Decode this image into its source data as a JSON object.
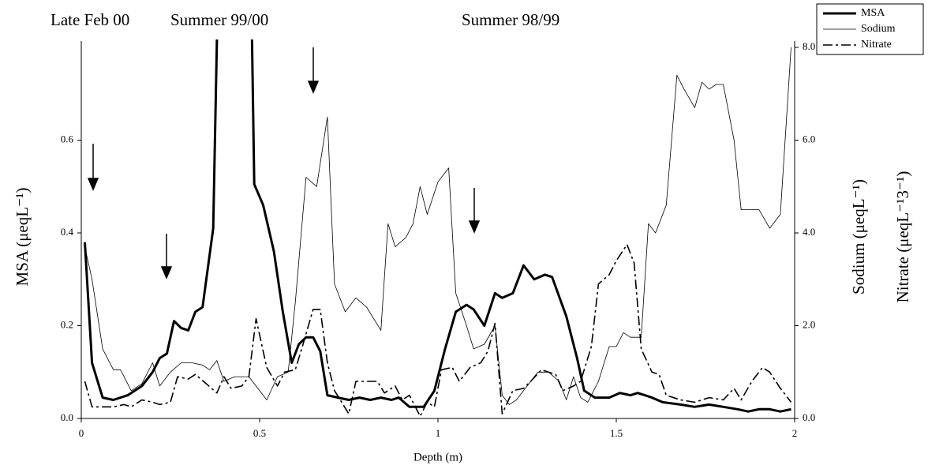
{
  "chart_data": {
    "type": "line",
    "annotations": [
      "Late Feb 00",
      "Summer 99/00",
      "Summer 98/99"
    ],
    "xlabel": "Depth (m)",
    "ylabel": "MSA (μeqL⁻¹)",
    "y2labels": [
      "Sodium (μeqL⁻¹)",
      "Nitrate (μeqL⁻¹3⁻¹)"
    ],
    "xlim": [
      0,
      2
    ],
    "xticks": [
      0,
      0.5,
      1,
      1.5,
      2
    ],
    "ylim": [
      0,
      0.8
    ],
    "yticks": [
      {
        "value": 0,
        "label": "0.0"
      },
      0.2,
      0.4,
      0.6
    ],
    "y2lim": [
      0,
      8
    ],
    "y2ticks": [
      {
        "value": 0,
        "label": "0.0"
      },
      {
        "value": 2,
        "label": "2.0"
      },
      {
        "value": 4,
        "label": "4.0"
      },
      {
        "value": 6,
        "label": "6.0"
      },
      {
        "value": 8,
        "label": "8.0"
      }
    ],
    "legend": "top-right",
    "series": [
      {
        "name": "MSA",
        "color": "#000000",
        "linewidth": 3,
        "style": "solid",
        "x": [
          0.01,
          0.03,
          0.06,
          0.09,
          0.13,
          0.17,
          0.2,
          0.22,
          0.24,
          0.26,
          0.28,
          0.3,
          0.32,
          0.34,
          0.37,
          0.385,
          0.475,
          0.485,
          0.51,
          0.54,
          0.565,
          0.59,
          0.61,
          0.63,
          0.65,
          0.67,
          0.69,
          0.72,
          0.75,
          0.78,
          0.81,
          0.84,
          0.87,
          0.89,
          0.92,
          0.96,
          0.99,
          1.02,
          1.05,
          1.08,
          1.1,
          1.13,
          1.16,
          1.18,
          1.21,
          1.24,
          1.27,
          1.3,
          1.32,
          1.36,
          1.39,
          1.41,
          1.44,
          1.48,
          1.51,
          1.54,
          1.56,
          1.58,
          1.6,
          1.63,
          1.68,
          1.72,
          1.76,
          1.8,
          1.84,
          1.87,
          1.9,
          1.93,
          1.96,
          1.99
        ],
        "values": [
          0.38,
          0.12,
          0.045,
          0.04,
          0.05,
          0.07,
          0.1,
          0.13,
          0.14,
          0.21,
          0.195,
          0.19,
          0.23,
          0.24,
          0.41,
          1.0,
          1.0,
          0.505,
          0.46,
          0.36,
          0.23,
          0.12,
          0.16,
          0.175,
          0.175,
          0.145,
          0.05,
          0.045,
          0.04,
          0.045,
          0.04,
          0.045,
          0.04,
          0.045,
          0.025,
          0.025,
          0.06,
          0.15,
          0.23,
          0.245,
          0.235,
          0.2,
          0.27,
          0.26,
          0.27,
          0.33,
          0.3,
          0.31,
          0.305,
          0.22,
          0.13,
          0.06,
          0.045,
          0.045,
          0.055,
          0.05,
          0.055,
          0.05,
          0.045,
          0.035,
          0.03,
          0.025,
          0.03,
          0.025,
          0.02,
          0.015,
          0.02,
          0.02,
          0.015,
          0.02
        ]
      },
      {
        "name": "Sodium",
        "color": "#000000",
        "linewidth": 0.8,
        "style": "solid",
        "axis": "y2",
        "x": [
          0.01,
          0.03,
          0.06,
          0.09,
          0.11,
          0.14,
          0.17,
          0.2,
          0.22,
          0.25,
          0.28,
          0.31,
          0.34,
          0.36,
          0.38,
          0.4,
          0.43,
          0.47,
          0.5,
          0.52,
          0.55,
          0.58,
          0.6,
          0.63,
          0.66,
          0.69,
          0.71,
          0.74,
          0.77,
          0.8,
          0.84,
          0.86,
          0.88,
          0.91,
          0.93,
          0.95,
          0.97,
          1.0,
          1.03,
          1.05,
          1.08,
          1.1,
          1.13,
          1.16,
          1.18,
          1.2,
          1.22,
          1.25,
          1.28,
          1.31,
          1.34,
          1.36,
          1.38,
          1.4,
          1.42,
          1.45,
          1.48,
          1.5,
          1.52,
          1.54,
          1.57,
          1.59,
          1.61,
          1.64,
          1.67,
          1.69,
          1.72,
          1.74,
          1.76,
          1.78,
          1.8,
          1.83,
          1.85,
          1.88,
          1.9,
          1.93,
          1.96,
          1.99
        ],
        "values": [
          3.7,
          3.0,
          1.5,
          1.05,
          1.05,
          0.6,
          0.75,
          1.2,
          0.7,
          1.0,
          1.2,
          1.2,
          1.15,
          1.05,
          1.25,
          0.8,
          0.9,
          0.9,
          0.6,
          0.4,
          0.9,
          1.0,
          2.5,
          5.2,
          5.0,
          6.5,
          2.9,
          2.3,
          2.6,
          2.4,
          1.9,
          4.2,
          3.7,
          3.9,
          4.2,
          5.0,
          4.4,
          5.1,
          5.4,
          2.7,
          2.0,
          1.5,
          1.6,
          2.0,
          0.5,
          0.3,
          0.4,
          0.7,
          1.0,
          1.0,
          0.8,
          0.4,
          0.9,
          0.45,
          0.35,
          0.8,
          1.55,
          1.55,
          1.85,
          1.75,
          1.75,
          4.2,
          4.0,
          4.6,
          7.4,
          7.1,
          6.7,
          7.25,
          7.1,
          7.2,
          7.2,
          6.0,
          4.5,
          4.5,
          4.5,
          4.1,
          4.4,
          8.0
        ]
      },
      {
        "name": "Nitrate",
        "color": "#000000",
        "linewidth": 1.6,
        "style": "dash-dot",
        "axis": "y2",
        "x": [
          0.01,
          0.03,
          0.06,
          0.09,
          0.12,
          0.14,
          0.17,
          0.2,
          0.22,
          0.25,
          0.27,
          0.3,
          0.32,
          0.35,
          0.38,
          0.4,
          0.42,
          0.45,
          0.47,
          0.49,
          0.52,
          0.55,
          0.57,
          0.6,
          0.62,
          0.65,
          0.67,
          0.69,
          0.71,
          0.73,
          0.75,
          0.77,
          0.8,
          0.83,
          0.85,
          0.88,
          0.9,
          0.92,
          0.95,
          0.97,
          0.99,
          1.01,
          1.04,
          1.06,
          1.09,
          1.12,
          1.14,
          1.16,
          1.18,
          1.21,
          1.24,
          1.26,
          1.29,
          1.31,
          1.33,
          1.35,
          1.38,
          1.4,
          1.43,
          1.45,
          1.48,
          1.5,
          1.53,
          1.55,
          1.57,
          1.6,
          1.62,
          1.64,
          1.68,
          1.72,
          1.76,
          1.8,
          1.83,
          1.85,
          1.88,
          1.91,
          1.93,
          1.96,
          1.99
        ],
        "values": [
          0.8,
          0.25,
          0.25,
          0.25,
          0.3,
          0.25,
          0.4,
          0.35,
          0.3,
          0.35,
          0.9,
          0.85,
          0.95,
          0.75,
          0.55,
          0.9,
          0.65,
          0.7,
          0.9,
          2.15,
          1.1,
          0.7,
          1.0,
          1.05,
          1.55,
          2.35,
          2.35,
          1.2,
          0.6,
          0.35,
          0.1,
          0.8,
          0.8,
          0.8,
          0.55,
          0.7,
          0.4,
          0.5,
          0.05,
          0.35,
          0.25,
          1.05,
          1.1,
          0.8,
          1.1,
          1.2,
          1.45,
          2.05,
          0.1,
          0.6,
          0.65,
          0.8,
          1.05,
          1.0,
          0.95,
          0.6,
          0.7,
          0.8,
          1.55,
          2.9,
          3.1,
          3.4,
          3.75,
          3.35,
          1.5,
          1.0,
          0.95,
          0.5,
          0.4,
          0.35,
          0.45,
          0.4,
          0.65,
          0.4,
          0.8,
          1.1,
          1.0,
          0.65,
          0.35
        ]
      }
    ]
  }
}
